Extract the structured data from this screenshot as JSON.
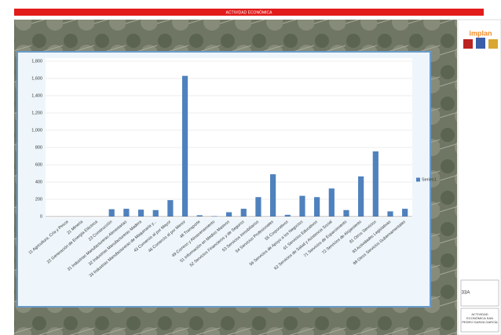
{
  "banner": "ACTIVIDAD ECONÓMICA",
  "sidebar": {
    "logo": "implan",
    "sheet": "33A",
    "caption": "ACTIVIDAD ECONÓMICA SAN PEDRO GARZA GARCÍA"
  },
  "chart_data": {
    "type": "bar",
    "categories": [
      "11 Agricultura, Cría y Pesca",
      "21 Minería",
      "22 Generación de Energía Eléctrica",
      "23 Construcción",
      "31 Industrias Manufactureras Alimentarias",
      "32 Industrias Manufactureras Madera",
      "33 Industrias Manufactureras de Maquinaria y...",
      "43 Comercio al por Mayor",
      "46 Comercio al por Menor",
      "48 Transporte",
      "49 Correos y Almacenamiento",
      "51 Información en Medios Masivos",
      "52 Servicios Financieros y de Seguros",
      "53 Servicios Inmobiliarios",
      "54 Servicios Profesionales",
      "55 Corporativos",
      "56 Servicios de Apoyo a los Negocios",
      "61 Servicios Educativos",
      "62 Servicios de Salud y Asistencia Social",
      "71 Servicios de Esparcimiento",
      "72 Servicios de Alojamiento",
      "81 Otros Servicios",
      "93 Actividades Legislativas",
      "99 Otros Servicios Gubernamentales"
    ],
    "series": [
      {
        "name": "Series1",
        "color": "#4f81bd",
        "values": [
          0,
          0,
          0,
          85,
          90,
          80,
          75,
          190,
          1630,
          15,
          5,
          50,
          90,
          225,
          490,
          20,
          240,
          225,
          325,
          75,
          465,
          755,
          60,
          90
        ]
      }
    ],
    "ylim": [
      0,
      1800
    ],
    "yticks": [
      0,
      200,
      400,
      600,
      800,
      {
        "value": 1000,
        "label": "1,000"
      },
      {
        "value": 1200,
        "label": "1,200"
      },
      {
        "value": 1400,
        "label": "1,400"
      },
      {
        "value": 1600,
        "label": "1,600"
      },
      {
        "value": 1800,
        "label": "1,800"
      }
    ],
    "grid": true,
    "legend": "right"
  }
}
